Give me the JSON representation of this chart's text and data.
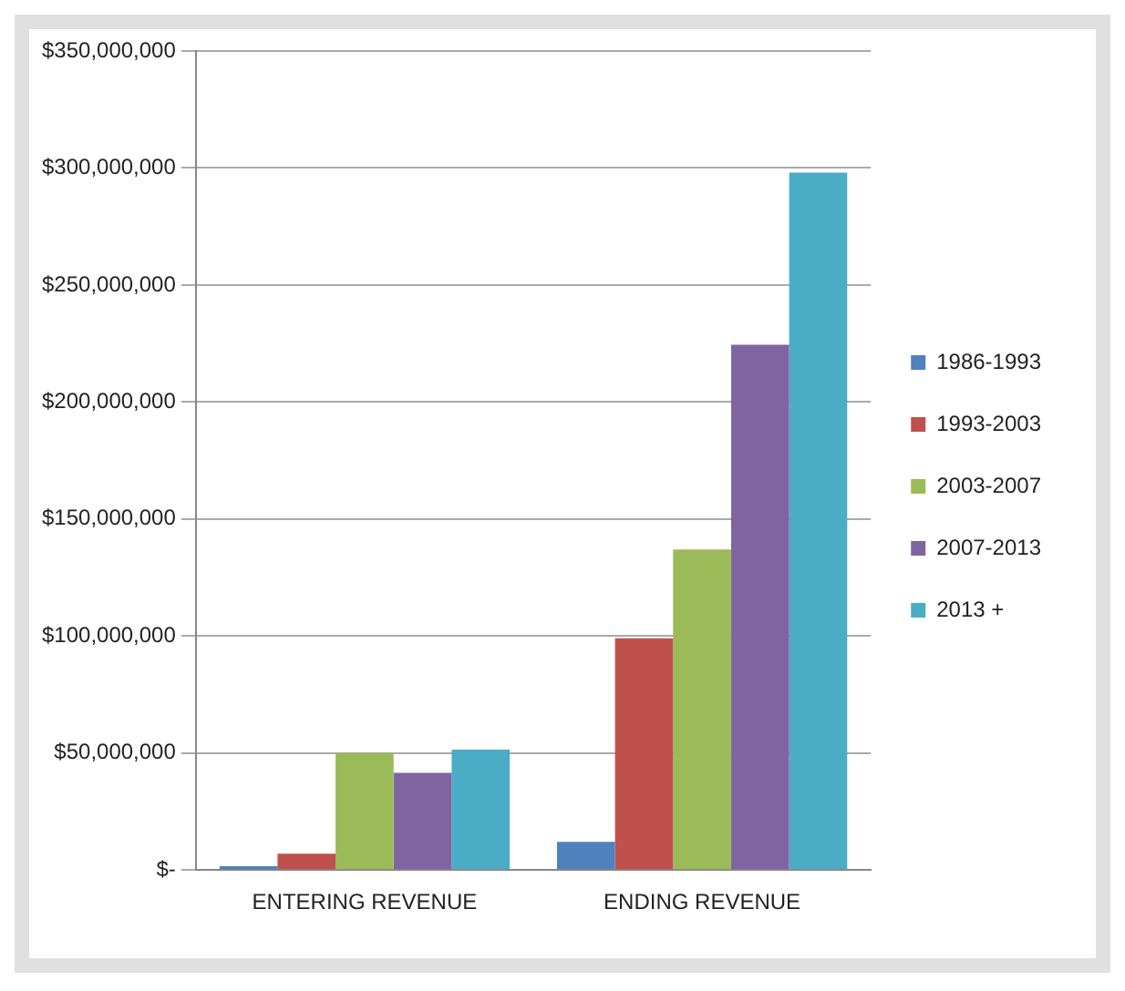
{
  "chart_data": {
    "type": "bar",
    "categories": [
      "ENTERING REVENUE",
      "ENDING REVENUE"
    ],
    "series": [
      {
        "name": "1986-1993",
        "color": "#4f81bd",
        "values": [
          1600000,
          12000000
        ]
      },
      {
        "name": "1993-2003",
        "color": "#c0504d",
        "values": [
          7000000,
          99000000
        ]
      },
      {
        "name": "2003-2007",
        "color": "#9bbb59",
        "values": [
          50000000,
          137000000
        ]
      },
      {
        "name": "2007-2013",
        "color": "#8064a2",
        "values": [
          41500000,
          224500000
        ]
      },
      {
        "name": "2013 +",
        "color": "#4bacc6",
        "values": [
          51500000,
          298000000
        ]
      }
    ],
    "ylim": [
      0,
      350000000
    ],
    "yticks": [
      {
        "value": 0,
        "label": "$-"
      },
      {
        "value": 50000000,
        "label": "$50,000,000"
      },
      {
        "value": 100000000,
        "label": "$100,000,000"
      },
      {
        "value": 150000000,
        "label": "$150,000,000"
      },
      {
        "value": 200000000,
        "label": "$200,000,000"
      },
      {
        "value": 250000000,
        "label": "$250,000,000"
      },
      {
        "value": 300000000,
        "label": "$300,000,000"
      },
      {
        "value": 350000000,
        "label": "$350,000,000"
      }
    ],
    "grid": "y",
    "legend": "right"
  }
}
